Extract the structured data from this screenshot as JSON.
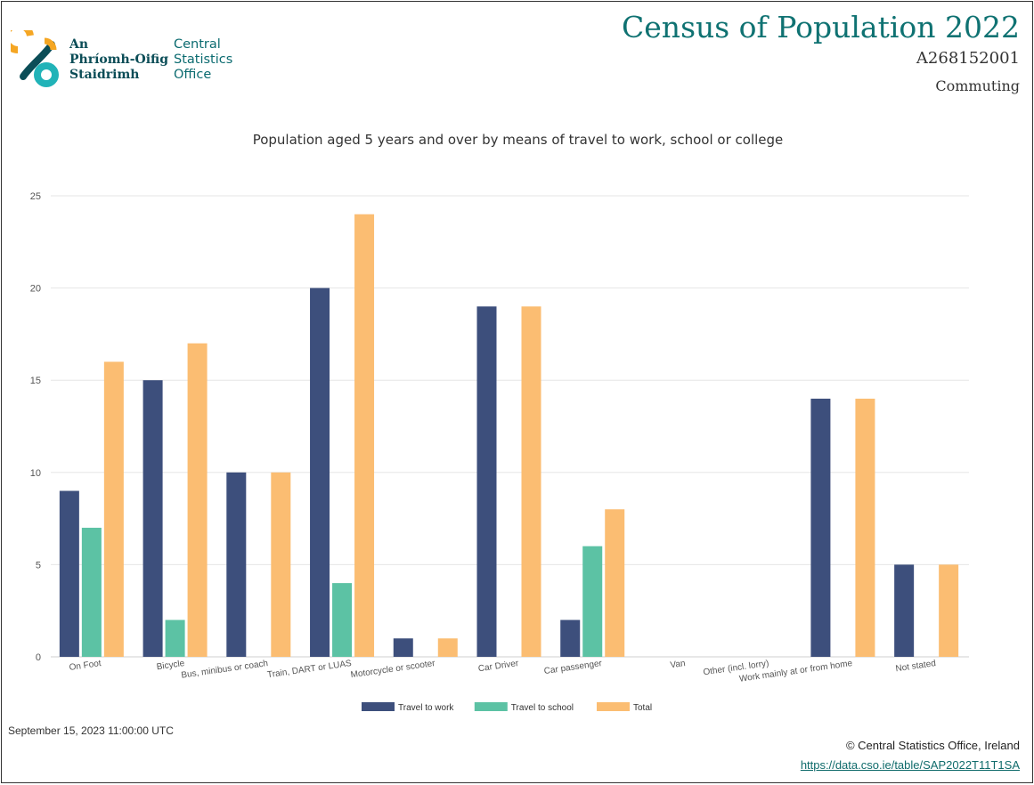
{
  "header": {
    "org_name_irish": [
      "An",
      "Phríomh-Oifig",
      "Staidrimh"
    ],
    "org_name_english": [
      "Central",
      "Statistics",
      "Office"
    ],
    "title": "Census of Population 2022",
    "table_code": "A268152001",
    "topic": "Commuting"
  },
  "colors": {
    "travel_to_work": "#3d4f7c",
    "travel_to_school": "#5cc2a4",
    "total": "#fbbd72",
    "brand_teal": "#0f7272",
    "logo_orange": "#f5a623",
    "logo_teal": "#21b3b8"
  },
  "chart_data": {
    "type": "bar",
    "title": "Population aged 5 years and over by means of travel to work, school or college",
    "xlabel": "",
    "ylabel": "",
    "ylim": [
      0,
      25
    ],
    "yticks": [
      0,
      5,
      10,
      15,
      20,
      25
    ],
    "grid": true,
    "legend_position": "bottom-center",
    "categories": [
      "On Foot",
      "Bicycle",
      "Bus, minibus or coach",
      "Train, DART or LUAS",
      "Motorcycle or scooter",
      "Car Driver",
      "Car passenger",
      "Van",
      "Other (incl. lorry)",
      "Work mainly at or from home",
      "Not stated"
    ],
    "series": [
      {
        "name": "Travel to work",
        "color": "#3d4f7c",
        "values": [
          9,
          15,
          10,
          20,
          1,
          19,
          2,
          0,
          0,
          14,
          5
        ]
      },
      {
        "name": "Travel to school",
        "color": "#5cc2a4",
        "values": [
          7,
          2,
          0,
          4,
          0,
          0,
          6,
          0,
          0,
          0,
          0
        ]
      },
      {
        "name": "Total",
        "color": "#fbbd72",
        "values": [
          16,
          17,
          10,
          24,
          1,
          19,
          8,
          0,
          0,
          14,
          5
        ]
      }
    ]
  },
  "footer": {
    "date": "September 15, 2023 11:00:00 UTC",
    "copyright": "© Central Statistics Office, Ireland",
    "link_text": "https://data.cso.ie/table/SAP2022T11T1SA"
  }
}
